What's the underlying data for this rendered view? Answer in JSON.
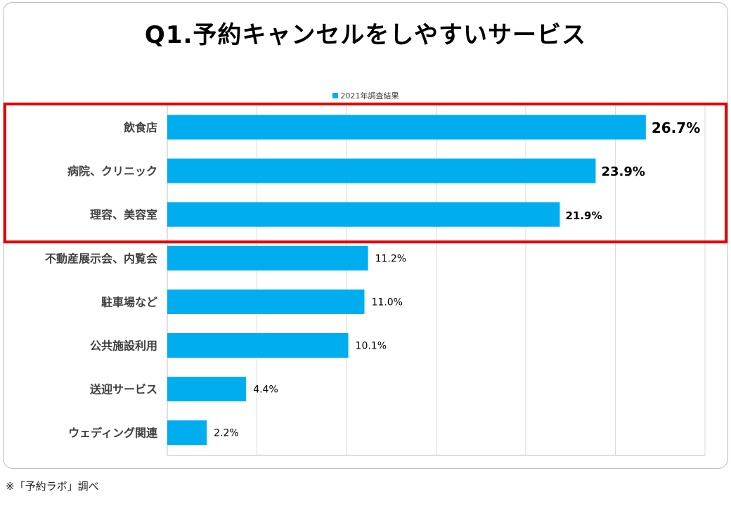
{
  "title": "Q1.予約キャンセルをしやすいサービス",
  "source_note": "※「予約ラボ」調べ",
  "colors": {
    "bar": "#00AEEF",
    "highlight_box": "#E60000",
    "gridline": "#d9d9d9"
  },
  "chart_data": {
    "type": "bar",
    "orientation": "horizontal",
    "title": "Q1.予約キャンセルをしやすいサービス",
    "categories": [
      "飲食店",
      "病院、クリニック",
      "理容、美容室",
      "不動産展示会、内覧会",
      "駐車場など",
      "公共施設利用",
      "送迎サービス",
      "ウェディング関連"
    ],
    "series": [
      {
        "name": "2021年調査結果",
        "values": [
          26.7,
          23.9,
          21.9,
          11.2,
          11.0,
          10.1,
          4.4,
          2.2
        ],
        "labels": [
          "26.7%",
          "23.9%",
          "21.9%",
          "11.2%",
          "11.0%",
          "10.1%",
          "4.4%",
          "2.2%"
        ]
      }
    ],
    "xlim": [
      0,
      30
    ],
    "grid": true,
    "legend": "top-center",
    "highlighted_categories": [
      "飲食店",
      "病院、クリニック",
      "理容、美容室"
    ]
  }
}
